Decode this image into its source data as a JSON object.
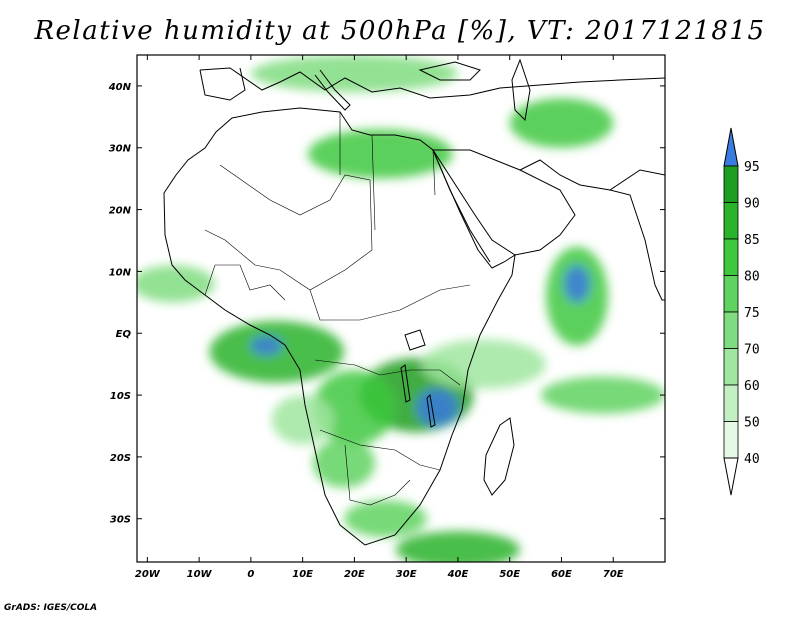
{
  "title": "Relative humidity at 500hPa [%], VT: 2017121815",
  "credit": "GrADS: IGES/COLA",
  "map": {
    "lon_range": [
      -22,
      80
    ],
    "lat_range": [
      -37,
      45
    ],
    "lon_ticks": [
      {
        "value": -20,
        "label": "20W"
      },
      {
        "value": -10,
        "label": "10W"
      },
      {
        "value": 0,
        "label": "0"
      },
      {
        "value": 10,
        "label": "10E"
      },
      {
        "value": 20,
        "label": "20E"
      },
      {
        "value": 30,
        "label": "30E"
      },
      {
        "value": 40,
        "label": "40E"
      },
      {
        "value": 50,
        "label": "50E"
      },
      {
        "value": 60,
        "label": "60E"
      },
      {
        "value": 70,
        "label": "70E"
      }
    ],
    "lat_ticks": [
      {
        "value": 40,
        "label": "40N"
      },
      {
        "value": 30,
        "label": "30N"
      },
      {
        "value": 20,
        "label": "20N"
      },
      {
        "value": 10,
        "label": "10N"
      },
      {
        "value": 0,
        "label": "EQ"
      },
      {
        "value": -10,
        "label": "10S"
      },
      {
        "value": -20,
        "label": "20S"
      },
      {
        "value": -30,
        "label": "30S"
      }
    ]
  },
  "colorbar": {
    "levels": [
      "40",
      "50",
      "60",
      "70",
      "75",
      "80",
      "85",
      "90",
      "95"
    ],
    "colors": [
      "#e6f9e6",
      "#c3f0c3",
      "#a0e6a0",
      "#80dc80",
      "#5fd25f",
      "#3ec83e",
      "#2bb32b",
      "#1e9e1e",
      "#3a7be0"
    ],
    "under_color": "#ffffff",
    "over_color": "#3a7be0"
  },
  "humid_regions": [
    {
      "lon": 32,
      "lat": -10,
      "rx": 11,
      "ry": 6,
      "level": 7
    },
    {
      "lon": 36,
      "lat": -12,
      "rx": 4,
      "ry": 3,
      "level": 8
    },
    {
      "lon": 5,
      "lat": -3,
      "rx": 13,
      "ry": 5,
      "level": 6
    },
    {
      "lon": 3,
      "lat": -2,
      "rx": 3,
      "ry": 1.5,
      "level": 8
    },
    {
      "lon": 20,
      "lat": -12,
      "rx": 8,
      "ry": 6,
      "level": 5
    },
    {
      "lon": 18,
      "lat": -21,
      "rx": 6,
      "ry": 4,
      "level": 4
    },
    {
      "lon": 26,
      "lat": -30,
      "rx": 8,
      "ry": 3,
      "level": 4
    },
    {
      "lon": 40,
      "lat": -35,
      "rx": 12,
      "ry": 3,
      "level": 6
    },
    {
      "lon": 63,
      "lat": 6,
      "rx": 6,
      "ry": 8,
      "level": 5
    },
    {
      "lon": 63,
      "lat": 8,
      "rx": 2.5,
      "ry": 3,
      "level": 8
    },
    {
      "lon": 68,
      "lat": -10,
      "rx": 12,
      "ry": 3,
      "level": 4
    },
    {
      "lon": 25,
      "lat": 29,
      "rx": 14,
      "ry": 4,
      "level": 5
    },
    {
      "lon": 60,
      "lat": 34,
      "rx": 10,
      "ry": 4,
      "level": 5
    },
    {
      "lon": 20,
      "lat": 42,
      "rx": 20,
      "ry": 3,
      "level": 3
    },
    {
      "lon": -15,
      "lat": 8,
      "rx": 8,
      "ry": 3,
      "level": 3
    },
    {
      "lon": 45,
      "lat": -5,
      "rx": 12,
      "ry": 4,
      "level": 2
    },
    {
      "lon": 10,
      "lat": -14,
      "rx": 6,
      "ry": 4,
      "level": 2
    }
  ]
}
